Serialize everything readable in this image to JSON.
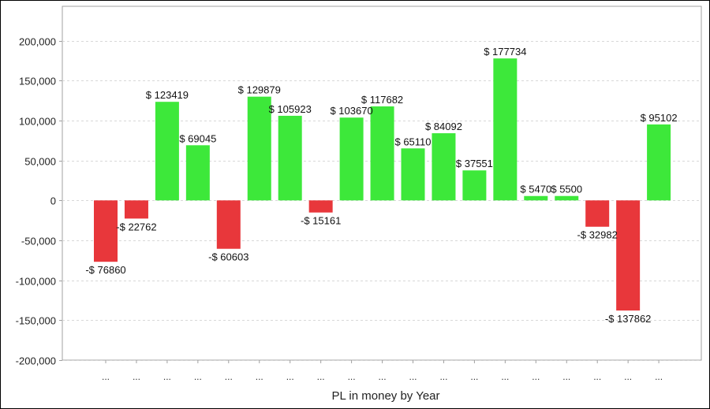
{
  "chart_data": {
    "type": "bar",
    "title": "",
    "xlabel": "PL in money by Year",
    "ylabel": "",
    "categories": [
      "...",
      "...",
      "...",
      "...",
      "...",
      "...",
      "...",
      "...",
      "...",
      "...",
      "...",
      "...",
      "...",
      "...",
      "...",
      "...",
      "...",
      "...",
      "..."
    ],
    "values": [
      -76860,
      -22762,
      123419,
      69045,
      -60603,
      129879,
      105923,
      -15161,
      103670,
      117682,
      65110,
      84092,
      37551,
      177734,
      5470,
      5500,
      -32982,
      -137862,
      95102
    ],
    "data_labels": [
      "-$ 76860",
      "-$ 22762",
      "$ 123419",
      "$ 69045",
      "-$ 60603",
      "$ 129879",
      "$ 105923",
      "-$ 15161",
      "$ 103670",
      "$ 117682",
      "$ 65110",
      "$ 84092",
      "$ 37551",
      "$ 177734",
      "$ 5470",
      "$ 5500",
      "-$ 32982",
      "-$ 137862",
      "$ 95102"
    ],
    "ylim": [
      -200000,
      243000
    ],
    "yticks": [
      200000,
      150000,
      100000,
      50000,
      0,
      -50000,
      -100000,
      -150000,
      -200000
    ],
    "ytick_labels": [
      "200,000",
      "150,000",
      "100,000",
      "50,000",
      "0",
      "-50,000",
      "-100,000",
      "-150,000",
      "-200,000"
    ],
    "grid": true,
    "colors": {
      "positive": "#3de83a",
      "negative": "#e8373b",
      "grid": "#d8d8d8",
      "axis": "#a0a0a0"
    }
  }
}
